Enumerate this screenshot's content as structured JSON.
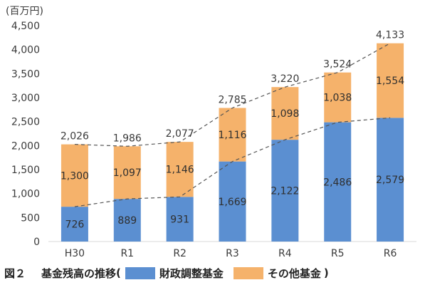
{
  "chart_data": {
    "type": "bar",
    "stacked": true,
    "unit_label": "(百万円)",
    "categories": [
      "H30",
      "R1",
      "R2",
      "R3",
      "R4",
      "R5",
      "R6"
    ],
    "series": [
      {
        "name": "財政調整基金",
        "values": [
          726,
          889,
          931,
          1669,
          2122,
          2486,
          2579
        ],
        "color": "#5b8fd1"
      },
      {
        "name": "その他基金",
        "values": [
          1300,
          1097,
          1146,
          1116,
          1098,
          1038,
          1554
        ],
        "color": "#f5b26b"
      }
    ],
    "totals": [
      2026,
      1986,
      2077,
      2785,
      3220,
      3524,
      4133
    ],
    "ylim": [
      0,
      4500
    ],
    "yticks": [
      0,
      500,
      1000,
      1500,
      2000,
      2500,
      3000,
      3500,
      4000,
      4500
    ],
    "grid": false,
    "trend_lines": "dashed"
  },
  "caption": {
    "figure_number": "図２",
    "title": "基金残高の推移",
    "open_paren": "(",
    "close_paren": ")"
  }
}
